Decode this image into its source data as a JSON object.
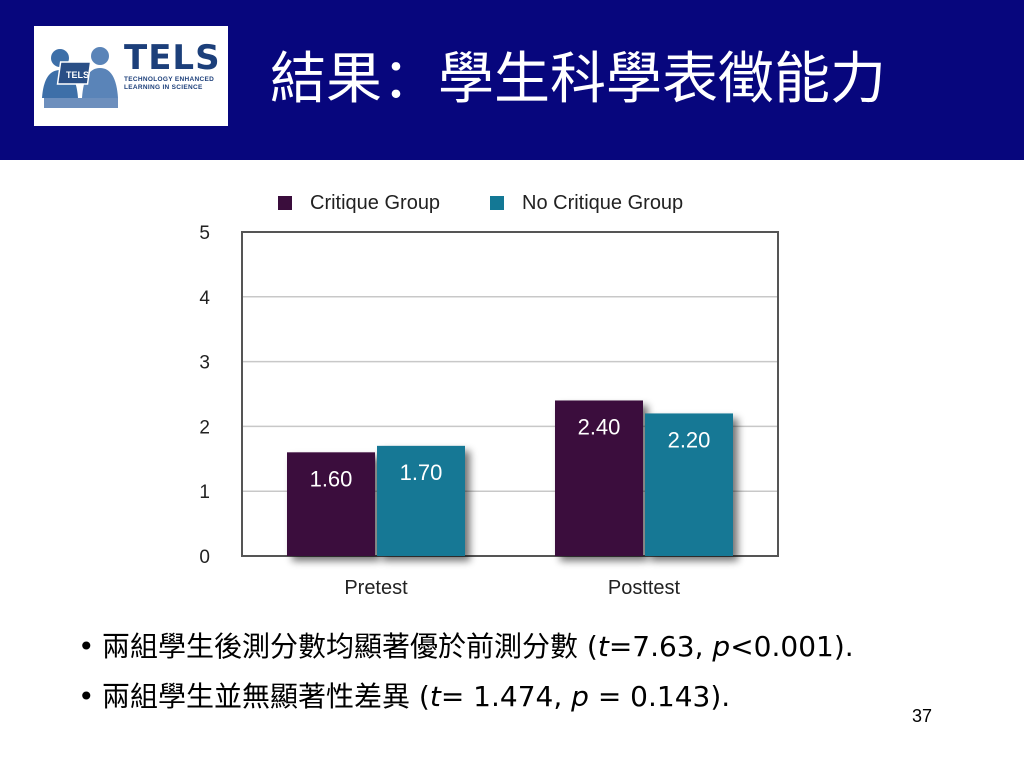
{
  "header": {
    "title": "結果：學生科學表徵能力",
    "logo": {
      "name": "TELS",
      "subtitle_line1": "TECHNOLOGY ENHANCED",
      "subtitle_line2": "LEARNING IN SCIENCE",
      "badge": "TELS",
      "color": "#1c3f7a"
    }
  },
  "chart_data": {
    "type": "bar",
    "categories": [
      "Pretest",
      "Posttest"
    ],
    "series": [
      {
        "name": "Critique Group",
        "values": [
          1.6,
          2.4
        ],
        "labels": [
          "1.60",
          "2.40"
        ],
        "color": "#3a0d3c"
      },
      {
        "name": "No Critique Group",
        "values": [
          1.7,
          2.2
        ],
        "labels": [
          "1.70",
          "2.20"
        ],
        "color": "#137895"
      }
    ],
    "ylim": [
      0,
      5
    ],
    "yticks": [
      "0",
      "1",
      "2",
      "3",
      "4",
      "5"
    ],
    "grid": true,
    "legend": "top"
  },
  "bullets": [
    {
      "pre": "兩組學生後測分數均顯著優於前測分數 (",
      "s1": "t",
      "m1": "=7.63, ",
      "s2": "p",
      "post": "<0.001)."
    },
    {
      "pre": "兩組學生並無顯著性差異 (",
      "s1": "t",
      "m1": "= 1.474, ",
      "s2": "p",
      "post": " = 0.143)."
    }
  ],
  "page_number": "37"
}
